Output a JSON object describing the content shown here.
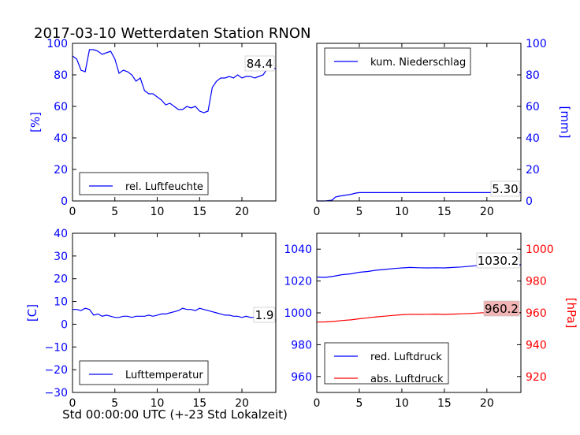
{
  "figure": {
    "title": "2017-03-10 Wetterdaten Station RNON",
    "xlabel": "Std 00:00:00 UTC (+-23 Std Lokalzeit)"
  },
  "colors": {
    "blue": "#0000ff",
    "red": "#ff0000",
    "black": "#000000"
  },
  "chart_data": [
    {
      "id": "humidity",
      "type": "line",
      "ylabel": "[%]",
      "ylabel_side": "left",
      "xlim": [
        0,
        24
      ],
      "ylim": [
        0,
        100
      ],
      "xticks": [
        "0",
        "5",
        "10",
        "15",
        "20"
      ],
      "yticks": [
        "0",
        "20",
        "40",
        "60",
        "80",
        "100"
      ],
      "legend": "bottom-left",
      "series": [
        {
          "name": "rel. Luftfeuchte",
          "color": "#0000ff",
          "x": [
            0,
            0.5,
            1,
            1.5,
            2,
            2.5,
            3,
            3.5,
            4,
            4.5,
            5,
            5.5,
            6,
            6.5,
            7,
            7.5,
            8,
            8.5,
            9,
            9.5,
            10,
            10.5,
            11,
            11.5,
            12,
            12.5,
            13,
            13.5,
            14,
            14.5,
            15,
            15.5,
            16,
            16.5,
            17,
            17.5,
            18,
            18.5,
            19,
            19.5,
            20,
            20.5,
            21,
            21.5,
            22,
            22.5,
            23,
            23.5,
            24
          ],
          "y": [
            92,
            90,
            83,
            82,
            96,
            96,
            95,
            93,
            94,
            95,
            90,
            81,
            83,
            82,
            80,
            76,
            78,
            70,
            68,
            68,
            66,
            64,
            61,
            62,
            60,
            58,
            58,
            60,
            59,
            60,
            57,
            56,
            57,
            72,
            76,
            78,
            78,
            79,
            78,
            80,
            78,
            79,
            79,
            78,
            79,
            80,
            84,
            84,
            84
          ]
        }
      ],
      "annotation": "84.4"
    },
    {
      "id": "precip",
      "type": "line",
      "ylabel": "[mm]",
      "ylabel_side": "right",
      "xlim": [
        0,
        24
      ],
      "ylim": [
        0,
        100
      ],
      "xticks": [
        "0",
        "5",
        "10",
        "15",
        "20"
      ],
      "yticks": [
        "0",
        "20",
        "40",
        "60",
        "80",
        "100"
      ],
      "legend": "top-left",
      "series": [
        {
          "name": "kum. Niederschlag",
          "color": "#0000ff",
          "x": [
            0,
            1,
            1.8,
            2.2,
            2.6,
            3.2,
            4,
            4.6,
            5,
            10,
            15,
            20,
            24
          ],
          "y": [
            0,
            0,
            0.5,
            2.5,
            3.0,
            3.5,
            4.2,
            5.0,
            5.3,
            5.3,
            5.3,
            5.3,
            5.3
          ]
        }
      ],
      "annotation": "5.30"
    },
    {
      "id": "temperature",
      "type": "line",
      "ylabel": "[C]",
      "ylabel_side": "left",
      "xlim": [
        0,
        24
      ],
      "ylim": [
        -30,
        40
      ],
      "xticks": [
        "0",
        "5",
        "10",
        "15",
        "20"
      ],
      "yticks": [
        "−30",
        "−20",
        "−10",
        "0",
        "10",
        "20",
        "30",
        "40"
      ],
      "legend": "bottom-left",
      "series": [
        {
          "name": "Lufttemperatur",
          "color": "#0000ff",
          "x": [
            0,
            0.5,
            1,
            1.5,
            2,
            2.5,
            3,
            3.5,
            4,
            4.5,
            5,
            5.5,
            6,
            6.5,
            7,
            7.5,
            8,
            8.5,
            9,
            9.5,
            10,
            10.5,
            11,
            11.5,
            12,
            12.5,
            13,
            13.5,
            14,
            14.5,
            15,
            15.5,
            16,
            16.5,
            17,
            17.5,
            18,
            18.5,
            19,
            19.5,
            20,
            20.5,
            21,
            21.5,
            22,
            22.5,
            23,
            23.5,
            24
          ],
          "y": [
            6.5,
            6.5,
            6,
            7,
            6.5,
            4,
            4.5,
            3.5,
            4,
            3.5,
            3,
            3,
            3.5,
            3.5,
            3,
            3.5,
            3.5,
            3.5,
            4,
            3.5,
            4,
            4.5,
            4.5,
            5,
            5.5,
            6,
            7,
            6.5,
            6.5,
            6,
            7,
            6.5,
            6,
            5.5,
            5,
            4.5,
            4,
            4,
            3.5,
            3.5,
            3,
            3.5,
            3,
            3,
            2.5,
            2.5,
            2,
            1.9,
            1.9
          ]
        }
      ],
      "annotation": "1.9"
    },
    {
      "id": "pressure",
      "type": "line",
      "ylabel": "[hPa]",
      "ylabel_side": "right",
      "xlim": [
        0,
        24
      ],
      "ylim_left": [
        950,
        1050
      ],
      "ylim_right": [
        910,
        1010
      ],
      "xticks": [
        "0",
        "5",
        "10",
        "15",
        "20"
      ],
      "yticks_left": [
        "960",
        "980",
        "1000",
        "1020",
        "1040"
      ],
      "yticks_right": [
        "920",
        "940",
        "960",
        "980",
        "1000"
      ],
      "legend": "bottom-left",
      "series": [
        {
          "name": "red. Luftdruck",
          "color": "#0000ff",
          "axis": "left",
          "x": [
            0,
            1,
            2,
            3,
            4,
            5,
            6,
            7,
            8,
            9,
            10,
            11,
            12,
            13,
            14,
            15,
            16,
            17,
            18,
            19,
            20,
            21,
            22,
            23,
            24
          ],
          "y": [
            1022.5,
            1022.3,
            1023,
            1024,
            1024.5,
            1025.5,
            1026,
            1026.8,
            1027.3,
            1027.8,
            1028.2,
            1028.5,
            1028.3,
            1028.2,
            1028.3,
            1028.2,
            1028.5,
            1028.8,
            1029.3,
            1029.8,
            1030.2,
            1030.0,
            1030.2,
            1030.2,
            1030.2
          ]
        },
        {
          "name": "abs. Luftdruck",
          "color": "#ff0000",
          "axis": "right",
          "x": [
            0,
            1,
            2,
            3,
            4,
            5,
            6,
            7,
            8,
            9,
            10,
            11,
            12,
            13,
            14,
            15,
            16,
            17,
            18,
            19,
            20,
            21,
            22,
            23,
            24
          ],
          "y": [
            954.2,
            954.3,
            954.6,
            955.2,
            955.6,
            956.3,
            956.9,
            957.5,
            957.9,
            958.4,
            958.8,
            959.1,
            959.0,
            959.1,
            959.2,
            959.0,
            959.2,
            959.4,
            959.6,
            959.9,
            960.2,
            960.2,
            960.2,
            960.2,
            960.2
          ]
        }
      ],
      "annotations": [
        "1030.2",
        "960.2"
      ]
    }
  ]
}
